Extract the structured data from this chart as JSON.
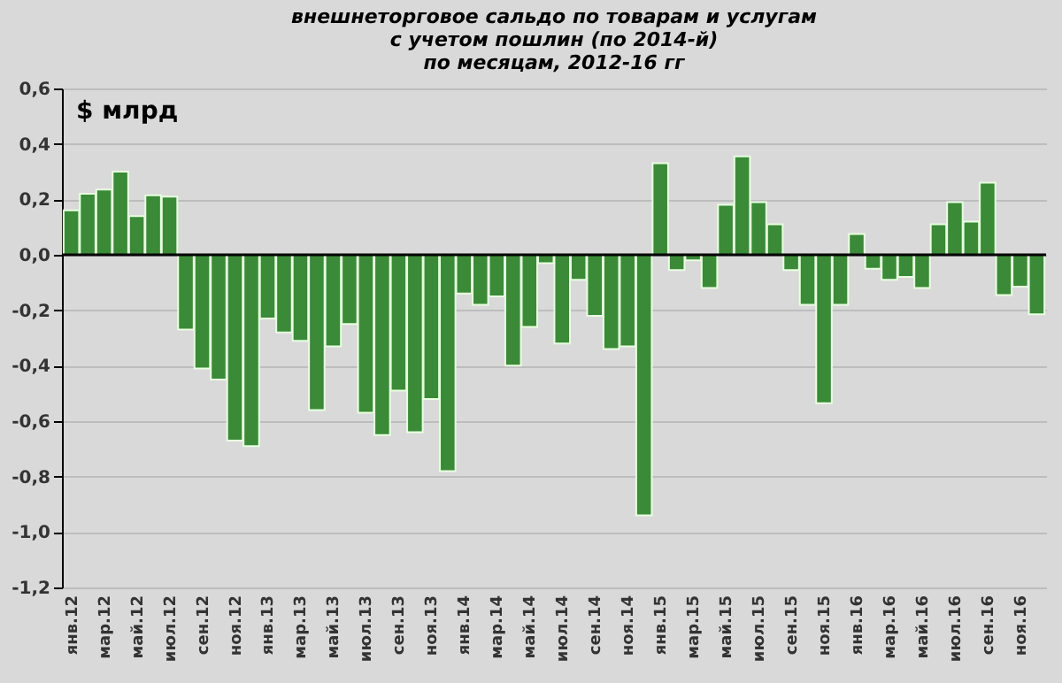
{
  "chart_data": {
    "type": "bar",
    "title": [
      "внешнеторговое сальдо по товарам  и услугам",
      "с учетом пошлин (по 2014-й)",
      "по месяцам, 2012-16 гг"
    ],
    "ylabel": "$ млрд",
    "categories": [
      "янв.12",
      null,
      "мар.12",
      null,
      "май.12",
      null,
      "июл.12",
      null,
      "сен.12",
      null,
      "ноя.12",
      null,
      "янв.13",
      null,
      "мар.13",
      null,
      "май.13",
      null,
      "июл.13",
      null,
      "сен.13",
      null,
      "ноя.13",
      null,
      "янв.14",
      null,
      "мар.14",
      null,
      "май.14",
      null,
      "июл.14",
      null,
      "сен.14",
      null,
      "ноя.14",
      null,
      "янв.15",
      null,
      "мар.15",
      null,
      "май.15",
      null,
      "июл.15",
      null,
      "сен.15",
      null,
      "ноя.15",
      null,
      "янв.16",
      null,
      "мар.16",
      null,
      "май.16",
      null,
      "июл.16",
      null,
      "сен.16",
      null,
      "ноя.16",
      null
    ],
    "series": [
      {
        "color": "#3a8a37",
        "values": [
          0.16,
          0.22,
          0.235,
          0.3,
          0.14,
          0.215,
          0.21,
          -0.27,
          -0.41,
          -0.45,
          -0.67,
          -0.69,
          -0.23,
          -0.28,
          -0.31,
          -0.56,
          -0.33,
          -0.25,
          -0.57,
          -0.65,
          -0.49,
          -0.64,
          -0.52,
          -0.78,
          -0.14,
          -0.18,
          -0.15,
          -0.4,
          -0.26,
          -0.03,
          -0.32,
          -0.09,
          -0.22,
          -0.34,
          -0.33,
          -0.94,
          0.33,
          -0.055,
          -0.02,
          -0.12,
          0.18,
          0.355,
          0.19,
          0.11,
          -0.055,
          -0.18,
          -0.535,
          -0.18,
          0.075,
          -0.05,
          -0.09,
          -0.08,
          -0.12,
          0.11,
          0.19,
          0.12,
          0.26,
          -0.145,
          -0.115,
          -0.215
        ]
      }
    ],
    "ylim": [
      -1.2,
      0.6
    ],
    "yticks": [
      {
        "value": -1.2,
        "label": "-1,2"
      },
      {
        "value": -1.0,
        "label": "-1,0"
      },
      {
        "value": -0.8,
        "label": "-0,8"
      },
      {
        "value": -0.6,
        "label": "-0,6"
      },
      {
        "value": -0.4,
        "label": "-0,4"
      },
      {
        "value": -0.2,
        "label": "-0,2"
      },
      {
        "value": 0.0,
        "label": "0,0"
      },
      {
        "value": 0.2,
        "label": "0,2"
      },
      {
        "value": 0.4,
        "label": "0,4"
      },
      {
        "value": 0.6,
        "label": "0,6"
      }
    ],
    "ref_lines": [
      {
        "axis": "y",
        "value": 0.0,
        "color": "#000000"
      }
    ],
    "grid": "y"
  }
}
